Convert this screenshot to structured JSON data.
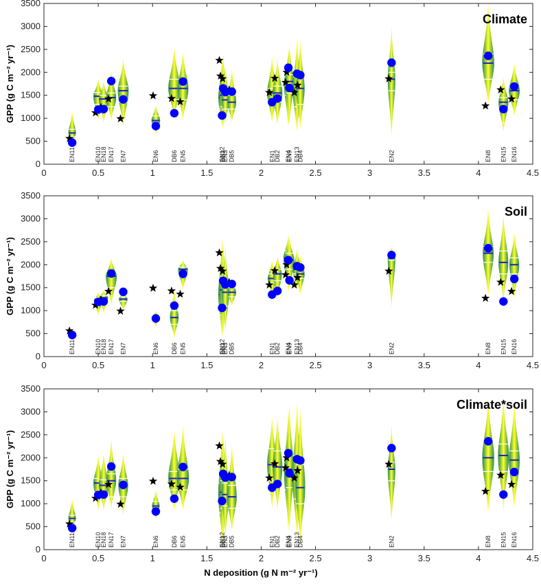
{
  "chart_data": {
    "type": "violin",
    "xlabel": "N deposition (g N m⁻² yr⁻¹)",
    "ylabel": "GPP (g C m⁻² yr⁻¹)",
    "xlim": [
      0,
      4.5
    ],
    "ylim": [
      0,
      3500
    ],
    "xticks": [
      0,
      0.5,
      1,
      1.5,
      2,
      2.5,
      3,
      3.5,
      4,
      4.5
    ],
    "xtick_labels": [
      "0",
      "0.5",
      "1",
      "1.5",
      "2",
      "2.5",
      "3",
      "3.5",
      "4",
      "4.5"
    ],
    "yticks": [
      0,
      500,
      1000,
      1500,
      2000,
      2500,
      3000,
      3500
    ],
    "ytick_labels": [
      "0",
      "500",
      "1000",
      "1500",
      "2000",
      "2500",
      "3000",
      "3500"
    ],
    "markers": {
      "observed": {
        "shape": "circle",
        "color": "#0000ff"
      },
      "predicted": {
        "shape": "star",
        "color": "#000000"
      }
    },
    "colors": {
      "violin_center": "#ffff33",
      "violin_edge": "#2e8b57",
      "median_line": "#1f1fcc",
      "quartile_line": "#ffffff"
    },
    "sites": [
      {
        "label": "EN11",
        "x": 0.26,
        "obs": 470,
        "pred": 560
      },
      {
        "label": "EN10",
        "x": 0.5,
        "obs": 1190,
        "pred": 1120
      },
      {
        "label": "EN18",
        "x": 0.55,
        "obs": 1200,
        "pred": 1240
      },
      {
        "label": "EN17",
        "x": 0.62,
        "obs": 1810,
        "pred": 1420
      },
      {
        "label": "EN7",
        "x": 0.73,
        "obs": 1410,
        "pred": 990
      },
      {
        "label": "EN6",
        "x": 1.03,
        "obs": 830,
        "pred": 1490
      },
      {
        "label": "DB6",
        "x": 1.2,
        "obs": 1110,
        "pred": 1430
      },
      {
        "label": "EN5",
        "x": 1.28,
        "obs": 1800,
        "pred": 1360
      },
      {
        "label": "EN12",
        "x": 1.64,
        "obs": 1060,
        "pred": 2260
      },
      {
        "label": "DB3",
        "x": 1.65,
        "obs": 1650,
        "pred": 1920
      },
      {
        "label": "EN3",
        "x": 1.67,
        "obs": 1570,
        "pred": 1860
      },
      {
        "label": "DB5",
        "x": 1.73,
        "obs": 1580,
        "pred": 1620
      },
      {
        "label": "EN1",
        "x": 2.1,
        "obs": 1350,
        "pred": 1560
      },
      {
        "label": "DB2",
        "x": 2.15,
        "obs": 1430,
        "pred": 1870
      },
      {
        "label": "EN4",
        "x": 2.25,
        "obs": 2100,
        "pred": 1780
      },
      {
        "label": "EN9",
        "x": 2.26,
        "obs": 1660,
        "pred": 2000
      },
      {
        "label": "EN13",
        "x": 2.33,
        "obs": 1970,
        "pred": 1560
      },
      {
        "label": "DB4",
        "x": 2.36,
        "obs": 1940,
        "pred": 1720
      },
      {
        "label": "EN2",
        "x": 3.2,
        "obs": 2210,
        "pred": 1860
      },
      {
        "label": "EN8",
        "x": 4.09,
        "obs": 2360,
        "pred": 1270
      },
      {
        "label": "EN15",
        "x": 4.23,
        "obs": 1200,
        "pred": 1620
      },
      {
        "label": "EN16",
        "x": 4.33,
        "obs": 1690,
        "pred": 1420
      }
    ],
    "panels": [
      {
        "title": "Climate",
        "violins": [
          {
            "x": 0.26,
            "hw": 0.035,
            "min": 450,
            "max": 1150,
            "median": 680,
            "q1": 600,
            "q3": 760
          },
          {
            "x": 0.5,
            "hw": 0.045,
            "min": 950,
            "max": 1850,
            "median": 1480,
            "q1": 1300,
            "q3": 1560
          },
          {
            "x": 0.55,
            "hw": 0.045,
            "min": 900,
            "max": 1800,
            "median": 1420,
            "q1": 1250,
            "q3": 1500
          },
          {
            "x": 0.62,
            "hw": 0.045,
            "min": 950,
            "max": 2050,
            "median": 1450,
            "q1": 1250,
            "q3": 1550
          },
          {
            "x": 0.73,
            "hw": 0.05,
            "min": 800,
            "max": 2300,
            "median": 1600,
            "q1": 1350,
            "q3": 1700
          },
          {
            "x": 1.03,
            "hw": 0.04,
            "min": 650,
            "max": 1300,
            "median": 950,
            "q1": 850,
            "q3": 1050
          },
          {
            "x": 1.2,
            "hw": 0.055,
            "min": 1000,
            "max": 2550,
            "median": 1650,
            "q1": 1400,
            "q3": 1850
          },
          {
            "x": 1.28,
            "hw": 0.05,
            "min": 950,
            "max": 2450,
            "median": 1650,
            "q1": 1400,
            "q3": 1800
          },
          {
            "x": 1.64,
            "hw": 0.035,
            "min": 800,
            "max": 2300,
            "median": 1450,
            "q1": 1200,
            "q3": 1600
          },
          {
            "x": 1.65,
            "hw": 0.035,
            "min": 750,
            "max": 2400,
            "median": 1500,
            "q1": 1250,
            "q3": 1650
          },
          {
            "x": 1.67,
            "hw": 0.035,
            "min": 850,
            "max": 2200,
            "median": 1400,
            "q1": 1200,
            "q3": 1550
          },
          {
            "x": 1.73,
            "hw": 0.04,
            "min": 900,
            "max": 2100,
            "median": 1350,
            "q1": 1200,
            "q3": 1500
          },
          {
            "x": 2.1,
            "hw": 0.045,
            "min": 900,
            "max": 2350,
            "median": 1550,
            "q1": 1400,
            "q3": 1650
          },
          {
            "x": 2.15,
            "hw": 0.045,
            "min": 850,
            "max": 2300,
            "median": 1550,
            "q1": 1350,
            "q3": 1700
          },
          {
            "x": 2.25,
            "hw": 0.04,
            "min": 800,
            "max": 2500,
            "median": 1750,
            "q1": 1500,
            "q3": 1900
          },
          {
            "x": 2.26,
            "hw": 0.04,
            "min": 850,
            "max": 2600,
            "median": 1800,
            "q1": 1550,
            "q3": 1950
          },
          {
            "x": 2.33,
            "hw": 0.04,
            "min": 700,
            "max": 2750,
            "median": 1600,
            "q1": 1250,
            "q3": 1900
          },
          {
            "x": 2.36,
            "hw": 0.04,
            "min": 750,
            "max": 2700,
            "median": 1650,
            "q1": 1300,
            "q3": 1950
          },
          {
            "x": 3.2,
            "hw": 0.035,
            "min": 600,
            "max": 3000,
            "median": 1850,
            "q1": 1600,
            "q3": 2000
          },
          {
            "x": 4.09,
            "hw": 0.055,
            "min": 1300,
            "max": 3500,
            "median": 2200,
            "q1": 1850,
            "q3": 2400
          },
          {
            "x": 4.23,
            "hw": 0.045,
            "min": 700,
            "max": 1900,
            "median": 1350,
            "q1": 900,
            "q3": 1450
          },
          {
            "x": 4.33,
            "hw": 0.05,
            "min": 1050,
            "max": 2200,
            "median": 1600,
            "q1": 1400,
            "q3": 1680
          }
        ]
      },
      {
        "title": "Soil",
        "violins": [
          {
            "x": 0.26,
            "hw": 0.025,
            "min": 350,
            "max": 620,
            "median": 480,
            "q1": 440,
            "q3": 520
          },
          {
            "x": 0.5,
            "hw": 0.04,
            "min": 900,
            "max": 1400,
            "median": 1220,
            "q1": 1150,
            "q3": 1280
          },
          {
            "x": 0.55,
            "hw": 0.04,
            "min": 950,
            "max": 1450,
            "median": 1280,
            "q1": 1200,
            "q3": 1330
          },
          {
            "x": 0.62,
            "hw": 0.05,
            "min": 1100,
            "max": 2150,
            "median": 1750,
            "q1": 1500,
            "q3": 1850
          },
          {
            "x": 0.73,
            "hw": 0.04,
            "min": 1000,
            "max": 1450,
            "median": 1250,
            "q1": 1200,
            "q3": 1300
          },
          {
            "x": 1.03,
            "hw": 0.03,
            "min": 650,
            "max": 1000,
            "median": 850,
            "q1": 800,
            "q3": 900
          },
          {
            "x": 1.2,
            "hw": 0.04,
            "min": 400,
            "max": 1450,
            "median": 850,
            "q1": 700,
            "q3": 1000
          },
          {
            "x": 1.28,
            "hw": 0.045,
            "min": 1450,
            "max": 2100,
            "median": 1900,
            "q1": 1800,
            "q3": 1950
          },
          {
            "x": 1.64,
            "hw": 0.035,
            "min": 400,
            "max": 2600,
            "median": 1350,
            "q1": 900,
            "q3": 1700
          },
          {
            "x": 1.65,
            "hw": 0.035,
            "min": 450,
            "max": 2500,
            "median": 1450,
            "q1": 1000,
            "q3": 1750
          },
          {
            "x": 1.67,
            "hw": 0.035,
            "min": 500,
            "max": 2400,
            "median": 1400,
            "q1": 1100,
            "q3": 1650
          },
          {
            "x": 1.73,
            "hw": 0.04,
            "min": 1100,
            "max": 1700,
            "median": 1400,
            "q1": 1300,
            "q3": 1500
          },
          {
            "x": 2.1,
            "hw": 0.04,
            "min": 1300,
            "max": 2100,
            "median": 1700,
            "q1": 1600,
            "q3": 1800
          },
          {
            "x": 2.15,
            "hw": 0.04,
            "min": 1250,
            "max": 2200,
            "median": 1800,
            "q1": 1650,
            "q3": 1900
          },
          {
            "x": 2.25,
            "hw": 0.045,
            "min": 1400,
            "max": 2650,
            "median": 2150,
            "q1": 1950,
            "q3": 2300
          },
          {
            "x": 2.26,
            "hw": 0.045,
            "min": 1450,
            "max": 2600,
            "median": 2100,
            "q1": 1900,
            "q3": 2250
          },
          {
            "x": 2.33,
            "hw": 0.04,
            "min": 1450,
            "max": 2350,
            "median": 1900,
            "q1": 1800,
            "q3": 2000
          },
          {
            "x": 2.36,
            "hw": 0.04,
            "min": 1350,
            "max": 2200,
            "median": 1800,
            "q1": 1700,
            "q3": 1900
          },
          {
            "x": 3.2,
            "hw": 0.035,
            "min": 1050,
            "max": 2400,
            "median": 2150,
            "q1": 2100,
            "q3": 2250
          },
          {
            "x": 4.09,
            "hw": 0.05,
            "min": 1300,
            "max": 3200,
            "median": 2250,
            "q1": 2050,
            "q3": 2400
          },
          {
            "x": 4.23,
            "hw": 0.045,
            "min": 1200,
            "max": 3100,
            "median": 2050,
            "q1": 1800,
            "q3": 2300
          },
          {
            "x": 4.33,
            "hw": 0.045,
            "min": 1250,
            "max": 2700,
            "median": 2000,
            "q1": 1800,
            "q3": 2150
          }
        ]
      },
      {
        "title": "Climate*soil",
        "violins": [
          {
            "x": 0.26,
            "hw": 0.035,
            "min": 450,
            "max": 1100,
            "median": 680,
            "q1": 600,
            "q3": 750
          },
          {
            "x": 0.5,
            "hw": 0.045,
            "min": 850,
            "max": 2050,
            "median": 1450,
            "q1": 1250,
            "q3": 1550
          },
          {
            "x": 0.55,
            "hw": 0.045,
            "min": 850,
            "max": 2100,
            "median": 1400,
            "q1": 1200,
            "q3": 1520
          },
          {
            "x": 0.62,
            "hw": 0.045,
            "min": 900,
            "max": 2400,
            "median": 1500,
            "q1": 1150,
            "q3": 1650
          },
          {
            "x": 0.73,
            "hw": 0.045,
            "min": 750,
            "max": 2100,
            "median": 1400,
            "q1": 1150,
            "q3": 1550
          },
          {
            "x": 1.03,
            "hw": 0.035,
            "min": 650,
            "max": 1300,
            "median": 950,
            "q1": 850,
            "q3": 1050
          },
          {
            "x": 1.2,
            "hw": 0.055,
            "min": 850,
            "max": 2600,
            "median": 1550,
            "q1": 1300,
            "q3": 1700
          },
          {
            "x": 1.28,
            "hw": 0.055,
            "min": 850,
            "max": 2700,
            "median": 1550,
            "q1": 1300,
            "q3": 1750
          },
          {
            "x": 1.64,
            "hw": 0.035,
            "min": 150,
            "max": 2600,
            "median": 1200,
            "q1": 800,
            "q3": 1450
          },
          {
            "x": 1.65,
            "hw": 0.035,
            "min": 200,
            "max": 2600,
            "median": 1250,
            "q1": 900,
            "q3": 1500
          },
          {
            "x": 1.67,
            "hw": 0.035,
            "min": 250,
            "max": 2500,
            "median": 1200,
            "q1": 950,
            "q3": 1450
          },
          {
            "x": 1.73,
            "hw": 0.045,
            "min": 400,
            "max": 2300,
            "median": 1150,
            "q1": 900,
            "q3": 1400
          },
          {
            "x": 2.1,
            "hw": 0.045,
            "min": 900,
            "max": 2900,
            "median": 1850,
            "q1": 1500,
            "q3": 2200
          },
          {
            "x": 2.15,
            "hw": 0.045,
            "min": 850,
            "max": 2900,
            "median": 1800,
            "q1": 1450,
            "q3": 2150
          },
          {
            "x": 2.25,
            "hw": 0.04,
            "min": 400,
            "max": 3100,
            "median": 1700,
            "q1": 1300,
            "q3": 2050
          },
          {
            "x": 2.26,
            "hw": 0.04,
            "min": 400,
            "max": 3150,
            "median": 1750,
            "q1": 1350,
            "q3": 2100
          },
          {
            "x": 2.33,
            "hw": 0.045,
            "min": 250,
            "max": 3200,
            "median": 1600,
            "q1": 1100,
            "q3": 2050
          },
          {
            "x": 2.36,
            "hw": 0.045,
            "min": 150,
            "max": 3100,
            "median": 1350,
            "q1": 1000,
            "q3": 1850
          },
          {
            "x": 3.2,
            "hw": 0.035,
            "min": 600,
            "max": 2700,
            "median": 1750,
            "q1": 1500,
            "q3": 1900
          },
          {
            "x": 4.09,
            "hw": 0.055,
            "min": 800,
            "max": 3300,
            "median": 2000,
            "q1": 1700,
            "q3": 2400
          },
          {
            "x": 4.23,
            "hw": 0.05,
            "min": 850,
            "max": 3300,
            "median": 2050,
            "q1": 1700,
            "q3": 2300
          },
          {
            "x": 4.33,
            "hw": 0.05,
            "min": 900,
            "max": 3200,
            "median": 1950,
            "q1": 1700,
            "q3": 2150
          }
        ]
      }
    ]
  }
}
